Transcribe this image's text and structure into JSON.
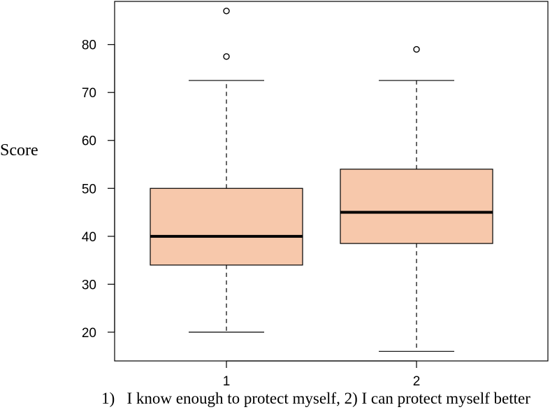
{
  "chart_data": {
    "type": "boxplot",
    "title": "",
    "ylabel": "Score",
    "xlabel": "1)   I know enough to protect myself, 2) I can protect myself better",
    "ylim": [
      14,
      89
    ],
    "yticks": [
      20,
      30,
      40,
      50,
      60,
      70,
      80
    ],
    "categories": [
      "1",
      "2"
    ],
    "box_fill": "#f7c8ab",
    "grid": false,
    "legend": "none",
    "boxes": [
      {
        "category": "1",
        "whisker_low": 20,
        "q1": 34,
        "median": 40,
        "q3": 50,
        "whisker_high": 72.5,
        "outliers": [
          77.5,
          87
        ]
      },
      {
        "category": "2",
        "whisker_low": 16,
        "q1": 38.5,
        "median": 45,
        "q3": 54,
        "whisker_high": 72.5,
        "outliers": [
          79
        ]
      }
    ]
  }
}
